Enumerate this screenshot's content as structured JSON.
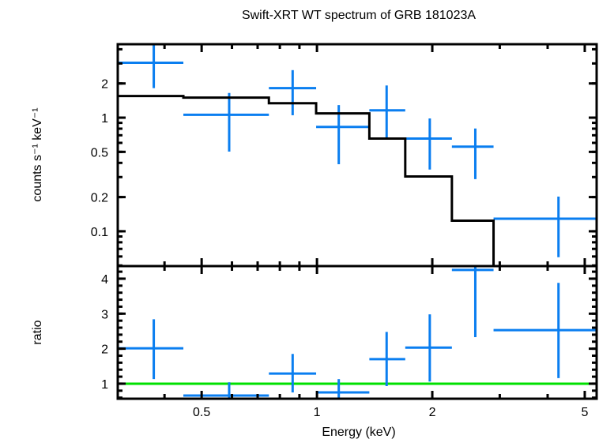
{
  "chart_data": {
    "type": "scatter",
    "title": "Swift-XRT WT spectrum of GRB 181023A",
    "xlabel": "Energy (keV)",
    "xscale": "log",
    "xlim": [
      0.302,
      5.37
    ],
    "xticks": [
      {
        "value": 0.5,
        "label": "0.5"
      },
      {
        "value": 1,
        "label": "1"
      },
      {
        "value": 2,
        "label": "2"
      },
      {
        "value": 5,
        "label": "5"
      }
    ],
    "panels": [
      {
        "name": "spectrum",
        "ylabel": "counts s⁻¹ keV⁻¹",
        "yscale": "log",
        "ylim": [
          0.0494,
          4.43
        ],
        "yticks": [
          {
            "value": 0.1,
            "label": "0.1"
          },
          {
            "value": 0.2,
            "label": "0.2"
          },
          {
            "value": 0.5,
            "label": "0.5"
          },
          {
            "value": 1,
            "label": "1"
          },
          {
            "value": 2,
            "label": "2"
          }
        ],
        "series": [
          {
            "name": "data",
            "color": "#0a7ef0",
            "points": [
              {
                "xlo": 0.302,
                "xhi": 0.448,
                "x": 0.375,
                "y": 3.04,
                "ylo": 1.82,
                "yhi": 4.43
              },
              {
                "xlo": 0.448,
                "xhi": 0.749,
                "x": 0.59,
                "y": 1.06,
                "ylo": 0.503,
                "yhi": 1.65
              },
              {
                "xlo": 0.749,
                "xhi": 0.995,
                "x": 0.864,
                "y": 1.82,
                "ylo": 1.05,
                "yhi": 2.62
              },
              {
                "xlo": 0.995,
                "xhi": 1.37,
                "x": 1.14,
                "y": 0.829,
                "ylo": 0.389,
                "yhi": 1.29
              },
              {
                "xlo": 1.37,
                "xhi": 1.7,
                "x": 1.52,
                "y": 1.16,
                "ylo": 0.647,
                "yhi": 1.92
              },
              {
                "xlo": 1.7,
                "xhi": 2.25,
                "x": 1.97,
                "y": 0.654,
                "ylo": 0.349,
                "yhi": 0.984
              },
              {
                "xlo": 2.25,
                "xhi": 2.89,
                "x": 2.59,
                "y": 0.556,
                "ylo": 0.288,
                "yhi": 0.803
              },
              {
                "xlo": 2.89,
                "xhi": 5.37,
                "x": 4.27,
                "y": 0.129,
                "ylo": 0.0591,
                "yhi": 0.202
              }
            ]
          },
          {
            "name": "model",
            "color": "#000000",
            "steps": [
              {
                "xlo": 0.302,
                "xhi": 0.448,
                "y": 1.55
              },
              {
                "xlo": 0.448,
                "xhi": 0.749,
                "y": 1.5
              },
              {
                "xlo": 0.749,
                "xhi": 0.995,
                "y": 1.34
              },
              {
                "xlo": 0.995,
                "xhi": 1.37,
                "y": 1.09
              },
              {
                "xlo": 1.37,
                "xhi": 1.7,
                "y": 0.654
              },
              {
                "xlo": 1.7,
                "xhi": 2.25,
                "y": 0.304
              },
              {
                "xlo": 2.25,
                "xhi": 2.89,
                "y": 0.124
              },
              {
                "xlo": 2.89,
                "xhi": 5.37,
                "y": 0.04
              }
            ]
          }
        ]
      },
      {
        "name": "ratio",
        "ylabel": "ratio",
        "yscale": "linear",
        "ylim": [
          0.57,
          4.36
        ],
        "yticks": [
          {
            "value": 1,
            "label": "1"
          },
          {
            "value": 2,
            "label": "2"
          },
          {
            "value": 3,
            "label": "3"
          },
          {
            "value": 4,
            "label": "4"
          }
        ],
        "reference_line": {
          "y": 1,
          "color": "#00e000"
        },
        "series": [
          {
            "name": "ratio",
            "color": "#0a7ef0",
            "points": [
              {
                "xlo": 0.302,
                "xhi": 0.448,
                "x": 0.375,
                "y": 2.01,
                "ylo": 1.13,
                "yhi": 2.84
              },
              {
                "xlo": 0.448,
                "xhi": 0.749,
                "x": 0.59,
                "y": 0.66,
                "ylo": 0.57,
                "yhi": 1.04
              },
              {
                "xlo": 0.749,
                "xhi": 0.995,
                "x": 0.864,
                "y": 1.29,
                "ylo": 0.75,
                "yhi": 1.85
              },
              {
                "xlo": 0.995,
                "xhi": 1.37,
                "x": 1.14,
                "y": 0.75,
                "ylo": 0.57,
                "yhi": 1.13
              },
              {
                "xlo": 1.37,
                "xhi": 1.7,
                "x": 1.52,
                "y": 1.7,
                "ylo": 0.93,
                "yhi": 2.48
              },
              {
                "xlo": 1.7,
                "xhi": 2.25,
                "x": 1.97,
                "y": 2.03,
                "ylo": 1.06,
                "yhi": 2.98
              },
              {
                "xlo": 2.25,
                "xhi": 2.89,
                "x": 2.59,
                "y": 4.25,
                "ylo": 2.33,
                "yhi": 4.36
              },
              {
                "xlo": 2.89,
                "xhi": 5.37,
                "x": 4.27,
                "y": 2.53,
                "ylo": 1.16,
                "yhi": 3.88
              }
            ]
          }
        ]
      }
    ]
  }
}
